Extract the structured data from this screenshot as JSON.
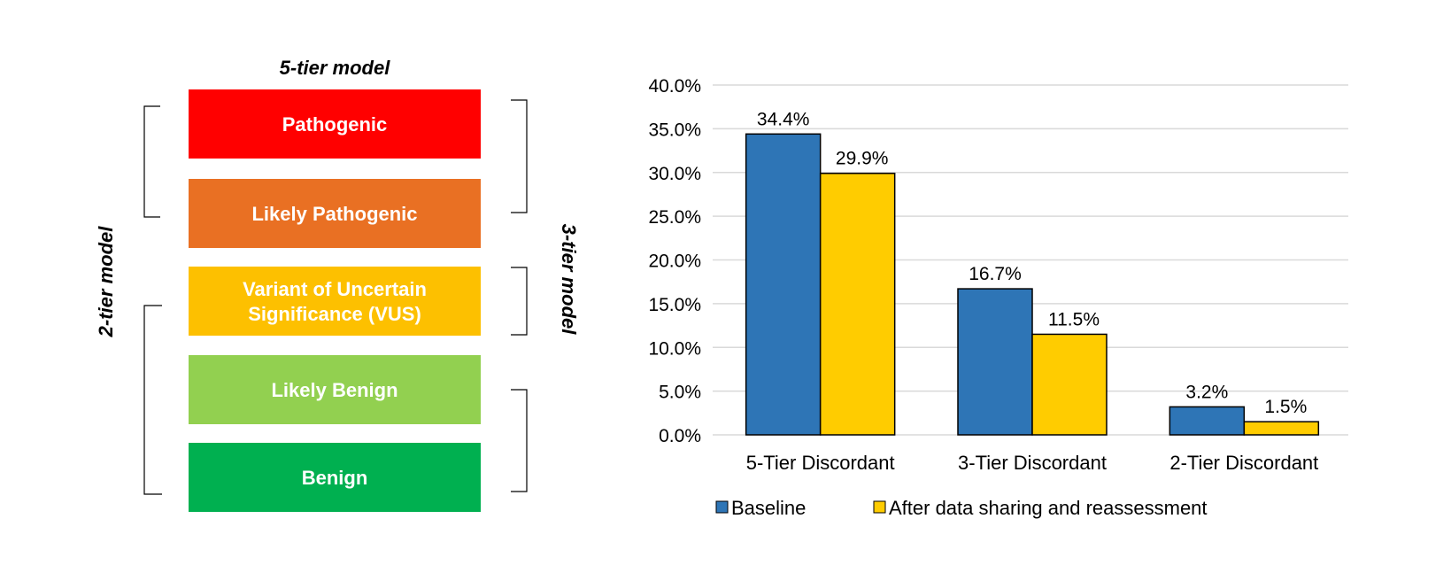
{
  "diagram": {
    "five_tier_label": "5-tier model",
    "two_tier_label": "2-tier model",
    "three_tier_label": "3-tier model",
    "classes": [
      {
        "lines": [
          "Pathogenic"
        ],
        "color": "#FF0000"
      },
      {
        "lines": [
          "Likely Pathogenic"
        ],
        "color": "#E97023"
      },
      {
        "lines": [
          "Variant of Uncertain",
          "Significance (VUS)"
        ],
        "color": "#FDC000"
      },
      {
        "lines": [
          "Likely Benign"
        ],
        "color": "#92D050"
      },
      {
        "lines": [
          "Benign"
        ],
        "color": "#00B050"
      }
    ]
  },
  "chart_data": {
    "type": "bar",
    "title": "",
    "xlabel": "",
    "ylabel": "",
    "categories": [
      "5-Tier Discordant",
      "3-Tier Discordant",
      "2-Tier Discordant"
    ],
    "series": [
      {
        "name": "Baseline",
        "values": [
          34.4,
          16.7,
          3.2
        ],
        "labels": [
          "34.4%",
          "16.7%",
          "3.2%"
        ],
        "color": "#2E75B6"
      },
      {
        "name": "After data sharing and reassessment",
        "values": [
          29.9,
          11.5,
          1.5
        ],
        "labels": [
          "29.9%",
          "11.5%",
          "1.5%"
        ],
        "color": "#FFCC00"
      }
    ],
    "ylim": [
      0,
      40
    ],
    "yticks": [
      "0.0%",
      "5.0%",
      "10.0%",
      "15.0%",
      "20.0%",
      "25.0%",
      "30.0%",
      "35.0%",
      "40.0%"
    ],
    "grid": true,
    "legend": "bottom"
  }
}
